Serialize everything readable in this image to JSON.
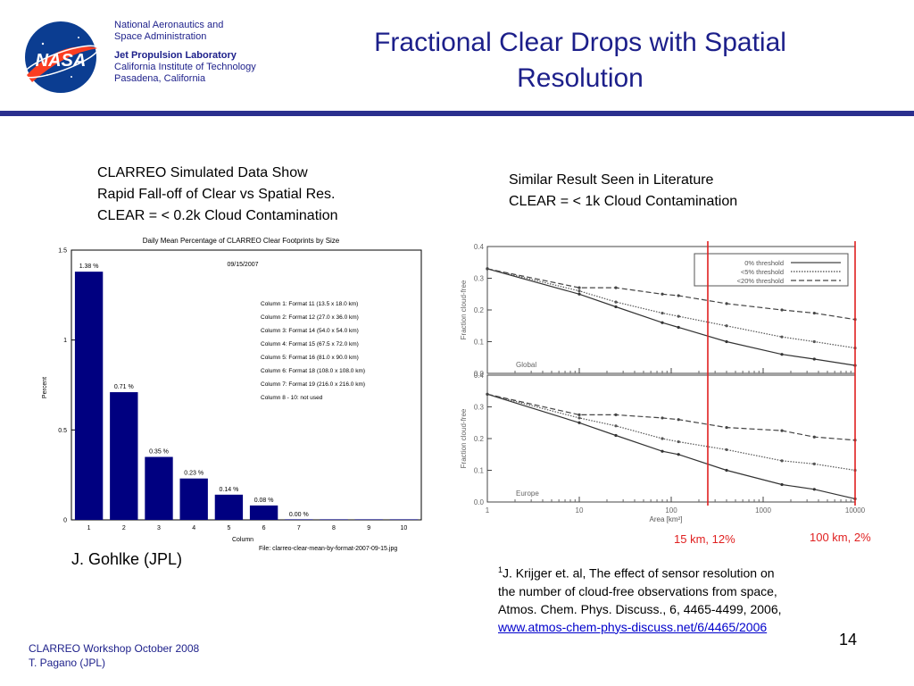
{
  "header": {
    "org_line1": "National Aeronautics and",
    "org_line2": "Space Administration",
    "lab": "Jet Propulsion Laboratory",
    "inst": "California Institute of Technology",
    "city": "Pasadena, California",
    "logo_text": "NASA"
  },
  "slide_title_line1": "Fractional Clear Drops with Spatial",
  "slide_title_line2": "Resolution",
  "left_caption": {
    "line1": "CLARREO Simulated Data Show",
    "line2": "Rapid Fall-off of Clear vs Spatial Res.",
    "line3": "CLEAR = < 0.2k Cloud Contamination"
  },
  "right_caption": {
    "line1": "Similar Result Seen in Literature",
    "line2": "CLEAR = < 1k Cloud Contamination"
  },
  "credit": "J. Gohlke (JPL)",
  "markers": {
    "m15": "15 km, 12%",
    "m100": "100 km, 2%"
  },
  "reference": {
    "sup": "1",
    "line1": "J. Krijger et. al, The effect of sensor resolution on",
    "line2": "the number of cloud-free observations from space,",
    "line3": "Atmos. Chem. Phys. Discuss., 6, 4465-4499, 2006,",
    "link": "www.atmos-chem-phys-discuss.net/6/4465/2006"
  },
  "page_number": "14",
  "footer": {
    "line1": "CLARREO Workshop October 2008",
    "line2": "T. Pagano (JPL)"
  },
  "chart_data": [
    {
      "type": "bar",
      "title": "Daily Mean Percentage of CLARREO Clear Footprints by Size",
      "date": "09/15/2007",
      "xlabel": "Column",
      "ylabel": "Percent",
      "categories": [
        "1",
        "2",
        "3",
        "4",
        "5",
        "6",
        "7",
        "8",
        "9",
        "10"
      ],
      "values": [
        1.38,
        0.71,
        0.35,
        0.23,
        0.14,
        0.08,
        0.0,
        0.0,
        0.0,
        0.0
      ],
      "value_labels": [
        "1.38 %",
        "0.71 %",
        "0.35 %",
        "0.23 %",
        "0.14 %",
        "0.08 %",
        "0.00 %",
        "",
        "",
        ""
      ],
      "ylim": [
        0,
        1.5
      ],
      "yticks": [
        "0",
        "0.5",
        "1",
        "1.5"
      ],
      "bar_color": "#000080",
      "legend_lines": [
        "Column 1:  Format 11   (13.5 x 18.0 km)",
        "Column 2:  Format 12   (27.0 x 36.0 km)",
        "Column 3:  Format 14   (54.0 x 54.0 km)",
        "Column 4:  Format 15   (67.5 x 72.0 km)",
        "Column 5:  Format 16   (81.0 x 90.0 km)",
        "Column 6:  Format 18   (108.0 x 108.0 km)",
        "Column 7:  Format 19   (216.0 x 216.0 km)",
        "Column 8 - 10:  not used"
      ],
      "file_label": "File: clarreo-clear-mean-by-format-2007-09-15.jpg"
    },
    {
      "type": "line",
      "x_scale": "log",
      "xlabel": "Area [km²]",
      "ylabel": "Fraction cloud-free",
      "xlim": [
        1,
        10000
      ],
      "ylim": [
        0,
        0.4
      ],
      "xticks": [
        "1",
        "10",
        "100",
        "1000",
        "10000"
      ],
      "yticks": [
        "0.0",
        "0.1",
        "0.2",
        "0.3",
        "0.4"
      ],
      "legend": [
        "0% threshold",
        "<5% threshold",
        "<20% threshold"
      ],
      "vertical_markers": [
        {
          "x": 250,
          "color": "#e02020"
        },
        {
          "x": 10000,
          "color": "#e02020"
        }
      ],
      "panels": [
        {
          "name": "Global",
          "x": [
            1,
            10,
            25,
            80,
            120,
            400,
            1600,
            3600,
            10000
          ],
          "series": [
            {
              "name": "0% threshold",
              "values": [
                0.33,
                0.25,
                0.21,
                0.16,
                0.145,
                0.1,
                0.06,
                0.045,
                0.025
              ]
            },
            {
              "name": "<5% threshold",
              "values": [
                0.33,
                0.26,
                0.225,
                0.19,
                0.18,
                0.15,
                0.115,
                0.1,
                0.08
              ]
            },
            {
              "name": "<20% threshold",
              "values": [
                0.33,
                0.27,
                0.27,
                0.25,
                0.245,
                0.22,
                0.2,
                0.19,
                0.17
              ]
            }
          ]
        },
        {
          "name": "Europe",
          "x": [
            1,
            10,
            25,
            80,
            120,
            400,
            1600,
            3600,
            10000
          ],
          "series": [
            {
              "name": "0% threshold",
              "values": [
                0.34,
                0.25,
                0.21,
                0.16,
                0.15,
                0.1,
                0.055,
                0.04,
                0.01
              ]
            },
            {
              "name": "<5% threshold",
              "values": [
                0.34,
                0.265,
                0.24,
                0.2,
                0.19,
                0.165,
                0.13,
                0.12,
                0.1
              ]
            },
            {
              "name": "<20% threshold",
              "values": [
                0.34,
                0.275,
                0.275,
                0.265,
                0.26,
                0.235,
                0.225,
                0.205,
                0.195
              ]
            }
          ]
        }
      ]
    }
  ]
}
